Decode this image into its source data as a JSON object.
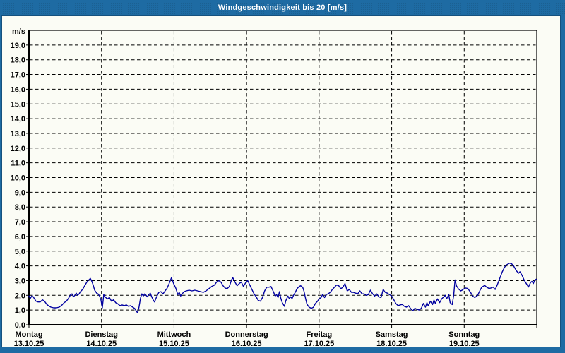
{
  "window": {
    "title": "Windgeschwindigkeit bis 20 [m/s]"
  },
  "colors": {
    "frame_blue": "#1e6ba3",
    "frame_edge_dark": "#15517e",
    "panel_background": "#fbfcf5",
    "line_navy": "#0000a0",
    "grid_black": "#000000",
    "title_text": "#ffffff"
  },
  "chart_data": {
    "type": "line",
    "title": "Windgeschwindigkeit bis 20 [m/s]",
    "unit_label": "m/s",
    "xlabel": "",
    "ylabel": "m/s",
    "ylim": [
      0,
      20
    ],
    "y_tick_step": 1,
    "grid": "dashed",
    "legend_position": "none",
    "y_tick_labels": [
      "0,0",
      "1,0",
      "2,0",
      "3,0",
      "4,0",
      "5,0",
      "6,0",
      "7,0",
      "8,0",
      "9,0",
      "10,0",
      "11,0",
      "12,0",
      "13,0",
      "14,0",
      "15,0",
      "16,0",
      "17,0",
      "18,0",
      "19,0"
    ],
    "x_days": [
      {
        "label": "Montag",
        "date": "13.10.25"
      },
      {
        "label": "Dienstag",
        "date": "14.10.25"
      },
      {
        "label": "Mittwoch",
        "date": "15.10.25"
      },
      {
        "label": "Donnerstag",
        "date": "16.10.25"
      },
      {
        "label": "Freitag",
        "date": "17.10.25"
      },
      {
        "label": "Samstag",
        "date": "18.10.25"
      },
      {
        "label": "Sonntag",
        "date": "19.10.25"
      }
    ],
    "points": [
      [
        0.0,
        1.95
      ],
      [
        0.019,
        1.8
      ],
      [
        0.039,
        1.95
      ],
      [
        0.058,
        1.9
      ],
      [
        0.078,
        1.75
      ],
      [
        0.097,
        1.6
      ],
      [
        0.126,
        1.55
      ],
      [
        0.156,
        1.55
      ],
      [
        0.185,
        1.7
      ],
      [
        0.214,
        1.6
      ],
      [
        0.243,
        1.4
      ],
      [
        0.272,
        1.28
      ],
      [
        0.302,
        1.2
      ],
      [
        0.34,
        1.15
      ],
      [
        0.379,
        1.15
      ],
      [
        0.418,
        1.2
      ],
      [
        0.457,
        1.35
      ],
      [
        0.486,
        1.5
      ],
      [
        0.516,
        1.6
      ],
      [
        0.545,
        1.8
      ],
      [
        0.574,
        2.05
      ],
      [
        0.593,
        2.1
      ],
      [
        0.613,
        1.9
      ],
      [
        0.632,
        2.0
      ],
      [
        0.652,
        2.15
      ],
      [
        0.671,
        2.0
      ],
      [
        0.691,
        2.1
      ],
      [
        0.71,
        2.25
      ],
      [
        0.739,
        2.4
      ],
      [
        0.768,
        2.65
      ],
      [
        0.798,
        2.9
      ],
      [
        0.827,
        3.05
      ],
      [
        0.846,
        3.15
      ],
      [
        0.866,
        2.95
      ],
      [
        0.885,
        2.7
      ],
      [
        0.905,
        2.35
      ],
      [
        0.934,
        2.15
      ],
      [
        0.953,
        2.1
      ],
      [
        0.973,
        1.95
      ],
      [
        0.992,
        1.7
      ],
      [
        1.012,
        1.15
      ],
      [
        1.031,
        2.05
      ],
      [
        1.05,
        1.9
      ],
      [
        1.08,
        1.75
      ],
      [
        1.109,
        1.85
      ],
      [
        1.138,
        1.6
      ],
      [
        1.167,
        1.7
      ],
      [
        1.196,
        1.5
      ],
      [
        1.226,
        1.42
      ],
      [
        1.255,
        1.3
      ],
      [
        1.284,
        1.35
      ],
      [
        1.313,
        1.3
      ],
      [
        1.342,
        1.35
      ],
      [
        1.372,
        1.25
      ],
      [
        1.401,
        1.3
      ],
      [
        1.43,
        1.2
      ],
      [
        1.459,
        1.1
      ],
      [
        1.478,
        0.95
      ],
      [
        1.498,
        0.8
      ],
      [
        1.517,
        1.2
      ],
      [
        1.537,
        1.8
      ],
      [
        1.556,
        2.1
      ],
      [
        1.576,
        1.95
      ],
      [
        1.595,
        2.1
      ],
      [
        1.615,
        2.0
      ],
      [
        1.634,
        1.9
      ],
      [
        1.653,
        2.05
      ],
      [
        1.673,
        2.15
      ],
      [
        1.692,
        1.9
      ],
      [
        1.712,
        1.7
      ],
      [
        1.731,
        1.55
      ],
      [
        1.751,
        1.8
      ],
      [
        1.77,
        2.0
      ],
      [
        1.79,
        2.2
      ],
      [
        1.819,
        2.25
      ],
      [
        1.848,
        2.1
      ],
      [
        1.877,
        2.3
      ],
      [
        1.906,
        2.5
      ],
      [
        1.936,
        2.85
      ],
      [
        1.965,
        3.2
      ],
      [
        1.994,
        2.8
      ],
      [
        2.023,
        2.5
      ],
      [
        2.052,
        2.05
      ],
      [
        2.072,
        2.2
      ],
      [
        2.091,
        1.95
      ],
      [
        2.111,
        2.1
      ],
      [
        2.14,
        2.25
      ],
      [
        2.169,
        2.3
      ],
      [
        2.208,
        2.35
      ],
      [
        2.247,
        2.3
      ],
      [
        2.286,
        2.35
      ],
      [
        2.325,
        2.3
      ],
      [
        2.364,
        2.25
      ],
      [
        2.403,
        2.2
      ],
      [
        2.442,
        2.3
      ],
      [
        2.48,
        2.45
      ],
      [
        2.519,
        2.6
      ],
      [
        2.558,
        2.7
      ],
      [
        2.587,
        2.9
      ],
      [
        2.617,
        3.0
      ],
      [
        2.646,
        2.9
      ],
      [
        2.675,
        2.65
      ],
      [
        2.704,
        2.5
      ],
      [
        2.733,
        2.45
      ],
      [
        2.762,
        2.6
      ],
      [
        2.792,
        3.05
      ],
      [
        2.811,
        3.2
      ],
      [
        2.84,
        2.9
      ],
      [
        2.869,
        2.65
      ],
      [
        2.899,
        2.8
      ],
      [
        2.928,
        2.9
      ],
      [
        2.957,
        2.6
      ],
      [
        2.986,
        2.85
      ],
      [
        3.015,
        3.0
      ],
      [
        3.044,
        2.7
      ],
      [
        3.074,
        2.4
      ],
      [
        3.103,
        2.1
      ],
      [
        3.132,
        1.9
      ],
      [
        3.161,
        1.65
      ],
      [
        3.19,
        1.6
      ],
      [
        3.22,
        1.85
      ],
      [
        3.249,
        2.3
      ],
      [
        3.278,
        2.55
      ],
      [
        3.307,
        2.55
      ],
      [
        3.336,
        2.6
      ],
      [
        3.365,
        2.3
      ],
      [
        3.395,
        1.95
      ],
      [
        3.414,
        2.05
      ],
      [
        3.434,
        1.85
      ],
      [
        3.453,
        2.25
      ],
      [
        3.472,
        1.8
      ],
      [
        3.492,
        1.5
      ],
      [
        3.521,
        1.25
      ],
      [
        3.54,
        1.62
      ],
      [
        3.57,
        1.95
      ],
      [
        3.589,
        1.78
      ],
      [
        3.608,
        1.9
      ],
      [
        3.628,
        1.78
      ],
      [
        3.647,
        2.0
      ],
      [
        3.676,
        2.25
      ],
      [
        3.696,
        2.45
      ],
      [
        3.725,
        2.6
      ],
      [
        3.745,
        2.65
      ],
      [
        3.774,
        2.55
      ],
      [
        3.793,
        2.25
      ],
      [
        3.813,
        1.8
      ],
      [
        3.832,
        1.4
      ],
      [
        3.861,
        1.2
      ],
      [
        3.891,
        1.12
      ],
      [
        3.92,
        1.18
      ],
      [
        3.949,
        1.45
      ],
      [
        3.978,
        1.6
      ],
      [
        3.998,
        1.75
      ],
      [
        4.027,
        1.85
      ],
      [
        4.046,
        2.05
      ],
      [
        4.075,
        1.85
      ],
      [
        4.095,
        2.05
      ],
      [
        4.124,
        2.1
      ],
      [
        4.153,
        2.2
      ],
      [
        4.182,
        2.4
      ],
      [
        4.212,
        2.55
      ],
      [
        4.241,
        2.7
      ],
      [
        4.27,
        2.65
      ],
      [
        4.299,
        2.45
      ],
      [
        4.328,
        2.55
      ],
      [
        4.357,
        2.8
      ],
      [
        4.387,
        2.3
      ],
      [
        4.416,
        2.4
      ],
      [
        4.445,
        2.2
      ],
      [
        4.474,
        2.2
      ],
      [
        4.503,
        2.15
      ],
      [
        4.532,
        2.1
      ],
      [
        4.562,
        2.3
      ],
      [
        4.591,
        2.1
      ],
      [
        4.62,
        2.1
      ],
      [
        4.649,
        2.0
      ],
      [
        4.678,
        2.05
      ],
      [
        4.707,
        2.35
      ],
      [
        4.737,
        2.1
      ],
      [
        4.766,
        1.95
      ],
      [
        4.795,
        2.1
      ],
      [
        4.824,
        1.9
      ],
      [
        4.853,
        1.85
      ],
      [
        4.883,
        2.4
      ],
      [
        4.912,
        2.2
      ],
      [
        4.941,
        2.15
      ],
      [
        4.97,
        2.05
      ],
      [
        5.0,
        1.95
      ],
      [
        5.029,
        1.7
      ],
      [
        5.058,
        1.45
      ],
      [
        5.087,
        1.3
      ],
      [
        5.116,
        1.35
      ],
      [
        5.146,
        1.38
      ],
      [
        5.175,
        1.25
      ],
      [
        5.204,
        1.2
      ],
      [
        5.233,
        1.3
      ],
      [
        5.262,
        1.1
      ],
      [
        5.291,
        0.95
      ],
      [
        5.321,
        1.12
      ],
      [
        5.35,
        1.05
      ],
      [
        5.379,
        1.0
      ],
      [
        5.408,
        1.12
      ],
      [
        5.437,
        1.45
      ],
      [
        5.466,
        1.2
      ],
      [
        5.486,
        1.5
      ],
      [
        5.505,
        1.28
      ],
      [
        5.534,
        1.6
      ],
      [
        5.563,
        1.37
      ],
      [
        5.583,
        1.68
      ],
      [
        5.602,
        1.45
      ],
      [
        5.631,
        1.76
      ],
      [
        5.661,
        1.5
      ],
      [
        5.69,
        1.76
      ],
      [
        5.709,
        1.85
      ],
      [
        5.738,
        2.0
      ],
      [
        5.758,
        1.76
      ],
      [
        5.787,
        2.05
      ],
      [
        5.806,
        1.5
      ],
      [
        5.835,
        1.37
      ],
      [
        5.855,
        2.0
      ],
      [
        5.874,
        3.05
      ],
      [
        5.894,
        2.64
      ],
      [
        5.923,
        2.42
      ],
      [
        5.952,
        2.3
      ],
      [
        5.971,
        2.35
      ],
      [
        5.991,
        2.42
      ],
      [
        6.02,
        2.5
      ],
      [
        6.049,
        2.47
      ],
      [
        6.088,
        2.2
      ],
      [
        6.117,
        1.95
      ],
      [
        6.146,
        1.85
      ],
      [
        6.185,
        2.0
      ],
      [
        6.214,
        2.3
      ],
      [
        6.243,
        2.56
      ],
      [
        6.282,
        2.67
      ],
      [
        6.311,
        2.55
      ],
      [
        6.341,
        2.47
      ],
      [
        6.37,
        2.5
      ],
      [
        6.399,
        2.56
      ],
      [
        6.428,
        2.4
      ],
      [
        6.457,
        2.72
      ],
      [
        6.486,
        3.1
      ],
      [
        6.525,
        3.6
      ],
      [
        6.555,
        3.9
      ],
      [
        6.584,
        4.07
      ],
      [
        6.623,
        4.18
      ],
      [
        6.652,
        4.15
      ],
      [
        6.681,
        4.0
      ],
      [
        6.72,
        3.67
      ],
      [
        6.749,
        3.5
      ],
      [
        6.768,
        3.6
      ],
      [
        6.798,
        3.35
      ],
      [
        6.827,
        3.03
      ],
      [
        6.866,
        2.72
      ],
      [
        6.885,
        2.56
      ],
      [
        6.914,
        2.87
      ],
      [
        6.934,
        2.95
      ],
      [
        6.953,
        2.8
      ],
      [
        6.972,
        3.03
      ],
      [
        6.992,
        3.1
      ]
    ]
  }
}
